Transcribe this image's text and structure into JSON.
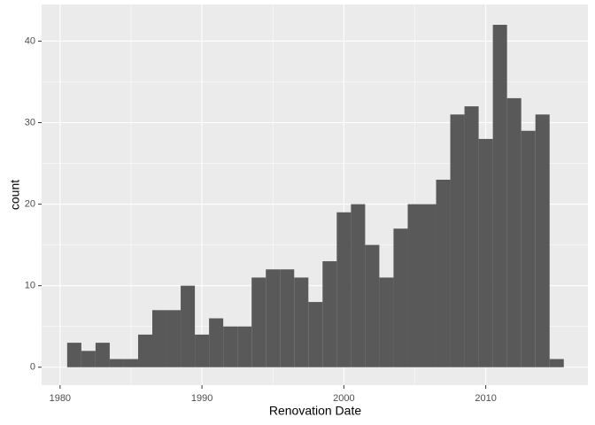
{
  "chart_data": {
    "type": "histogram",
    "x_label": "Renovation Date",
    "y_label": "count",
    "bins": [
      1980.5,
      1981.5,
      1982.5,
      1983.5,
      1984.5,
      1985.5,
      1986.5,
      1987.5,
      1988.5,
      1989.5,
      1990.5,
      1991.5,
      1992.5,
      1993.5,
      1994.5,
      1995.5,
      1996.5,
      1997.5,
      1998.5,
      1999.5,
      2000.5,
      2001.5,
      2002.5,
      2003.5,
      2004.5,
      2005.5,
      2006.5,
      2007.5,
      2008.5,
      2009.5,
      2010.5,
      2011.5,
      2012.5,
      2013.5,
      2014.5,
      2015.5
    ],
    "values": [
      3,
      2,
      3,
      1,
      1,
      4,
      7,
      7,
      10,
      4,
      6,
      5,
      5,
      11,
      12,
      12,
      11,
      8,
      13,
      19,
      20,
      15,
      11,
      17,
      20,
      20,
      23,
      31,
      32,
      28,
      42,
      33,
      29,
      31,
      1
    ],
    "color": "#595959",
    "xlim": [
      1978.7,
      2017.2
    ],
    "xticks": [
      1980,
      1990,
      2000,
      2010
    ],
    "ylim": [
      -2.2,
      44.5
    ],
    "yticks": [
      0,
      10,
      20,
      30,
      40
    ],
    "grid": true,
    "minor_grid": true
  }
}
